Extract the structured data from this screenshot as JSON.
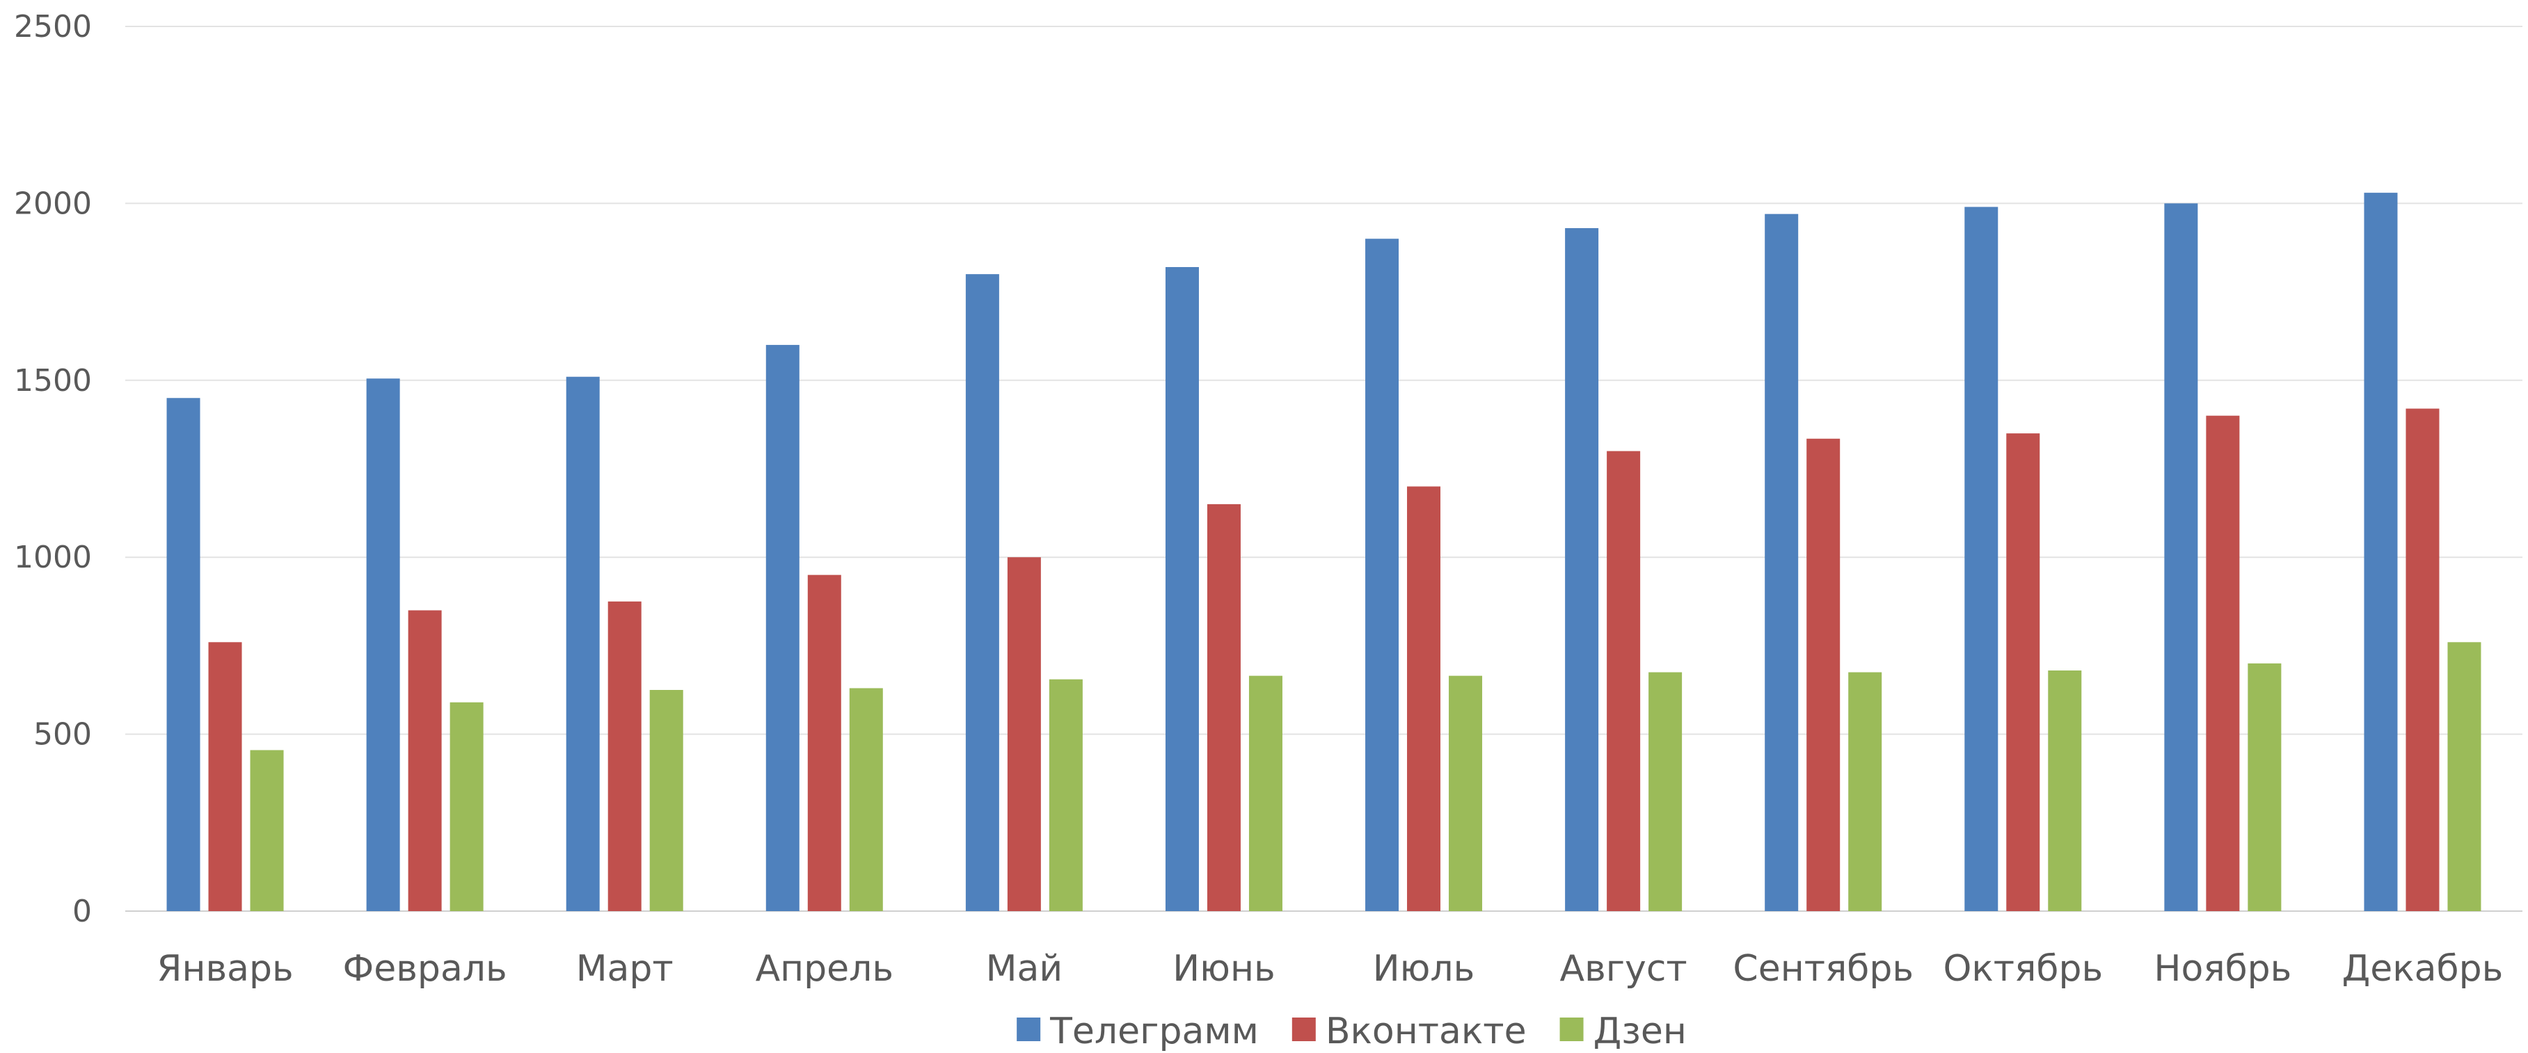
{
  "chart_data": {
    "type": "bar",
    "categories": [
      "Январь",
      "Февраль",
      "Март",
      "Апрель",
      "Май",
      "Июнь",
      "Июль",
      "Август",
      "Сентябрь",
      "Октябрь",
      "Ноябрь",
      "Декабрь"
    ],
    "series": [
      {
        "name": "Телеграмм",
        "color": "#4f81bd",
        "values": [
          1450,
          1505,
          1510,
          1600,
          1800,
          1820,
          1900,
          1930,
          1970,
          1990,
          2000,
          2030
        ]
      },
      {
        "name": "Вконтакте",
        "color": "#c0504d",
        "values": [
          760,
          850,
          875,
          950,
          1000,
          1150,
          1200,
          1300,
          1335,
          1350,
          1400,
          1420
        ]
      },
      {
        "name": "Дзен",
        "color": "#9bbb59",
        "values": [
          455,
          590,
          625,
          630,
          655,
          665,
          665,
          675,
          675,
          680,
          700,
          760
        ]
      }
    ],
    "title": "",
    "xlabel": "",
    "ylabel": "",
    "ylim": [
      0,
      2500
    ],
    "yticks": [
      "0",
      "500",
      "1000",
      "1500",
      "2000",
      "2500"
    ],
    "grid": true,
    "legend_position": "bottom"
  }
}
